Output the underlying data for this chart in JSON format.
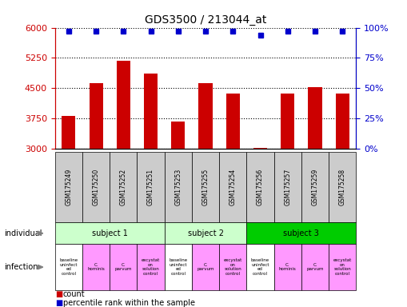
{
  "title": "GDS3500 / 213044_at",
  "samples": [
    "GSM175249",
    "GSM175250",
    "GSM175252",
    "GSM175251",
    "GSM175253",
    "GSM175255",
    "GSM175254",
    "GSM175256",
    "GSM175257",
    "GSM175259",
    "GSM175258"
  ],
  "counts": [
    3820,
    4620,
    5180,
    4870,
    3680,
    4620,
    4360,
    3020,
    4360,
    4520,
    4360
  ],
  "percentile_ranks": [
    97,
    97,
    97,
    97,
    97,
    97,
    97,
    94,
    97,
    97,
    97
  ],
  "ylim_left": [
    3000,
    6000
  ],
  "yticks_left": [
    3000,
    3750,
    4500,
    5250,
    6000
  ],
  "ylim_right": [
    0,
    100
  ],
  "yticks_right": [
    0,
    25,
    50,
    75,
    100
  ],
  "bar_color": "#cc0000",
  "dot_color": "#0000cc",
  "subjects": [
    {
      "label": "subject 1",
      "start": 0,
      "end": 3,
      "color": "#ccffcc"
    },
    {
      "label": "subject 2",
      "start": 4,
      "end": 6,
      "color": "#ccffcc"
    },
    {
      "label": "subject 3",
      "start": 7,
      "end": 10,
      "color": "#00cc00"
    }
  ],
  "infections": [
    {
      "label": "baseline\nuninfect\ned\ncontrol",
      "col": 0,
      "color": "#ffffff"
    },
    {
      "label": "C.\nhominis",
      "col": 1,
      "color": "#ff99ff"
    },
    {
      "label": "C.\nparvum",
      "col": 2,
      "color": "#ff99ff"
    },
    {
      "label": "excystat\non\nsolution\ncontrol",
      "col": 3,
      "color": "#ff99ff"
    },
    {
      "label": "baseline\nuninfect\ned\ncontrol",
      "col": 4,
      "color": "#ffffff"
    },
    {
      "label": "C.\nparvum",
      "col": 5,
      "color": "#ff99ff"
    },
    {
      "label": "excystat\non\nsolution\ncontrol",
      "col": 6,
      "color": "#ff99ff"
    },
    {
      "label": "baseline\nuninfect\ned\ncontrol",
      "col": 7,
      "color": "#ffffff"
    },
    {
      "label": "C.\nhominis",
      "col": 8,
      "color": "#ff99ff"
    },
    {
      "label": "C.\nparvum",
      "col": 9,
      "color": "#ff99ff"
    },
    {
      "label": "excystat\non\nsolution\ncontrol",
      "col": 10,
      "color": "#ff99ff"
    }
  ],
  "bg_color": "#ffffff",
  "sample_bg_color": "#cccccc",
  "axis_left_color": "#cc0000",
  "axis_right_color": "#0000cc"
}
